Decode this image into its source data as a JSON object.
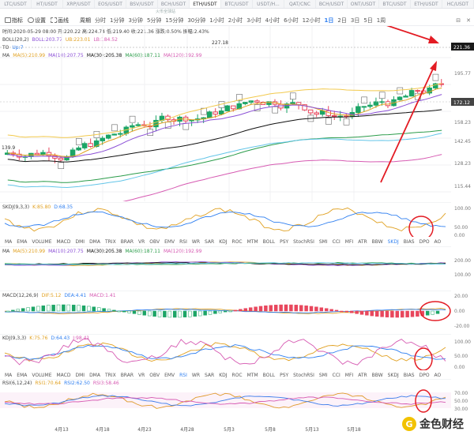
{
  "pair_tabs": [
    "LTC/USDT",
    "HT/USDT",
    "XRP/USDT",
    "EOS/USDT",
    "BSV/USDT",
    "BCH/USDT",
    "ETH/USDT",
    "BTC/USDT",
    "USDT/H...",
    "QAT/CNC",
    "BCH/USDT",
    "ONT/USDT",
    "BTC/USDT",
    "ETH/USDT",
    "HC/USDT"
  ],
  "active_pair_index": 6,
  "pair_subtitle": "火币全球站",
  "toolbar": {
    "tools": [
      "指标",
      "设置",
      "画线"
    ],
    "intervals_label": "周期",
    "intervals": [
      "分时",
      "1分钟",
      "3分钟",
      "5分钟",
      "15分钟",
      "30分钟",
      "1小时",
      "2小时",
      "3小时",
      "4小时",
      "6小时",
      "12小时",
      "1日",
      "2日",
      "3日",
      "5日",
      "1周"
    ],
    "active_interval": "1日",
    "win_icons": [
      "⊟",
      "✕"
    ]
  },
  "ohlc_line": "时间:2020-05-29 08:00  开:220.22  高:224.74  低:219.40  收:221.36  涨跌:0.50%  振幅:2.43%",
  "boll_line": [
    "BOLL(20,2)",
    "BOLL:203.77",
    "UB:223.01",
    "LB:184.52"
  ],
  "to_line": [
    "TO",
    "Up:7"
  ],
  "ma_line": [
    "MA",
    "MA(5):210.99",
    "MA(10):207.75",
    "MA(30):205.38",
    "MA(60):187.11",
    "MA(120):192.99"
  ],
  "main_price_labels": [
    "221.36",
    "195.77",
    "172.12",
    "158.23",
    "142.45",
    "128.23",
    "115.44"
  ],
  "current_price_tag": "221.36",
  "crosshair_tag": "172.12",
  "high_marker": "227.18",
  "low_marker": "139.9",
  "skdj": {
    "label": "SKDJ(9,3,3)",
    "k": "K:85.80",
    "d": "D:68.35",
    "scale": [
      "100.00",
      "50.00",
      "0.00"
    ]
  },
  "ind_tabs": [
    "MA",
    "EMA",
    "VOLUME",
    "MACD",
    "DMI",
    "DMA",
    "TRIX",
    "BRAR",
    "VR",
    "OBV",
    "EMV",
    "RSI",
    "WR",
    "SAR",
    "KDJ",
    "ROC",
    "MTM",
    "BOLL",
    "PSY",
    "StochRSI",
    "SMI",
    "CCI",
    "MFI",
    "ATR",
    "BBW",
    "SKDJ",
    "BIAS",
    "DPO",
    "AO"
  ],
  "ind_tabs_active_1": "SKDJ",
  "ind_tabs_active_2": "RSI",
  "ma_panel": {
    "label": "MA",
    "values": [
      "MA(5):210.99",
      "MA(10):207.75",
      "MA(30):205.38",
      "MA(60):187.11",
      "MA(120):192.99"
    ],
    "scale": [
      "200.00",
      "100.00"
    ]
  },
  "macd": {
    "label": "MACD(12,26,9)",
    "dif": "DIF:5.12",
    "dea": "DEA:4.41",
    "macd": "MACD:1.41",
    "scale": [
      "20.00",
      "0.00",
      "-20.00"
    ]
  },
  "kdj": {
    "label": "KDJ(9,3,3)",
    "k": "K:75.76",
    "d": "D:64.43",
    "j": "J:98.41",
    "scale": [
      "100.00",
      "50.00",
      "0.00"
    ]
  },
  "rsi": {
    "label": "RSI(6,12,24)",
    "r1": "RSI1:70.64",
    "r2": "RSI2:62.50",
    "r3": "RSI3:58.46",
    "scale": [
      "70.00",
      "50.00",
      "30.00"
    ]
  },
  "date_axis": [
    "4月13",
    "4月18",
    "4月23",
    "4月28",
    "5月3",
    "5月8",
    "5月13",
    "5月18"
  ],
  "watermark": "金色财经",
  "colors": {
    "up": "#1ca566",
    "down": "#e8475d",
    "ma5": "#e0a020",
    "ma10": "#8b4fd6",
    "ma30": "#111111",
    "ma60": "#2b9c4a",
    "ma120": "#d65ab2",
    "annot": "#e31b23",
    "accent": "#2f7ff0"
  }
}
